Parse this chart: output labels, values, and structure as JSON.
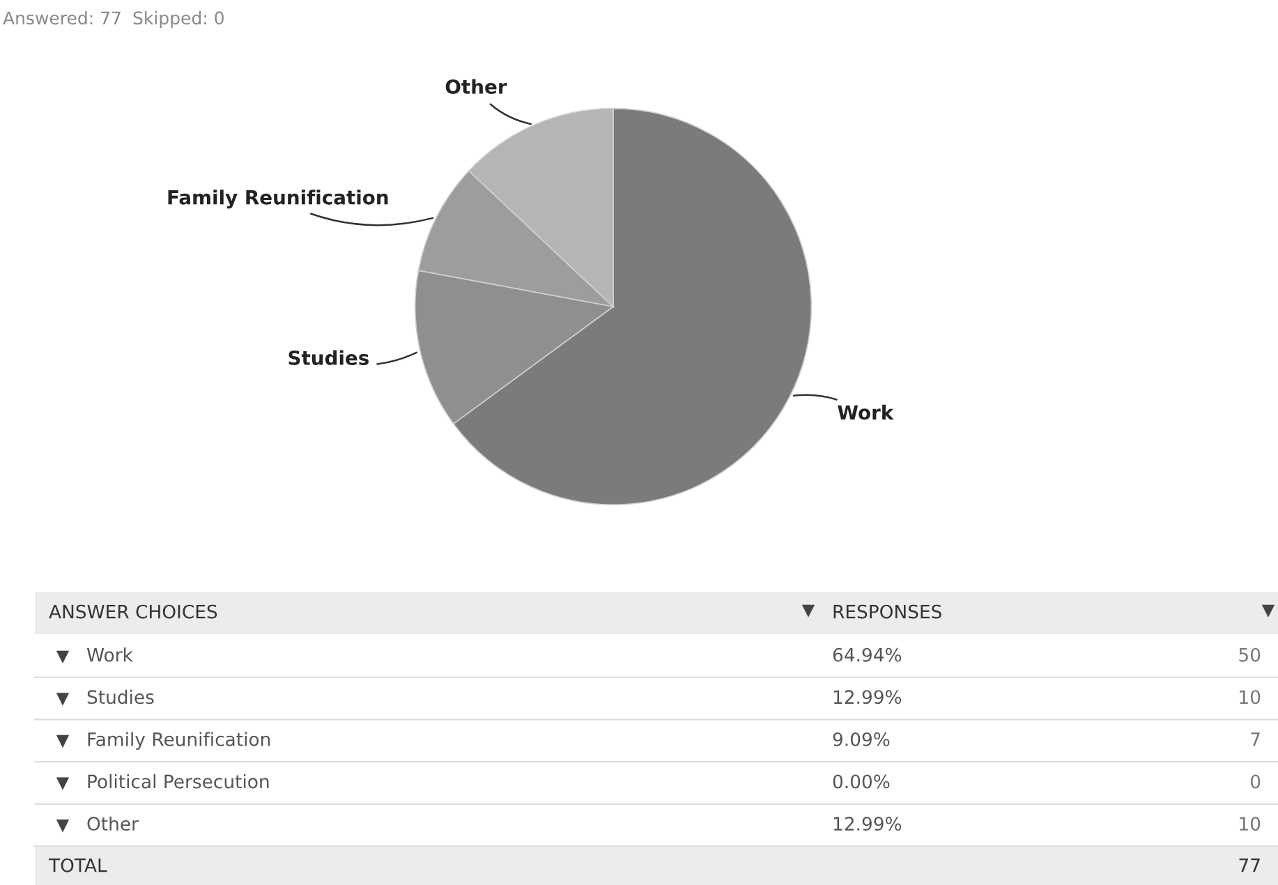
{
  "chart_data": {
    "type": "pie",
    "categories": [
      "Work",
      "Studies",
      "Family Reunification",
      "Political Persecution",
      "Other"
    ],
    "values": [
      64.94,
      12.99,
      9.09,
      0.0,
      12.99
    ],
    "colors": [
      "#7b7b7b",
      "#8f8f8f",
      "#9d9d9d",
      "#a9a9a9",
      "#b5b5b5"
    ],
    "totals": [
      "77"
    ],
    "annotations": [
      "Answered: 77",
      "Skipped: 0",
      "ANSWER CHOICES",
      "RESPONSES",
      "TOTAL",
      "50",
      "10",
      "7",
      "0",
      "10",
      "64.94%",
      "12.99%",
      "9.09%",
      "0.00%",
      "12.99%"
    ],
    "legend": "bottom"
  }
}
